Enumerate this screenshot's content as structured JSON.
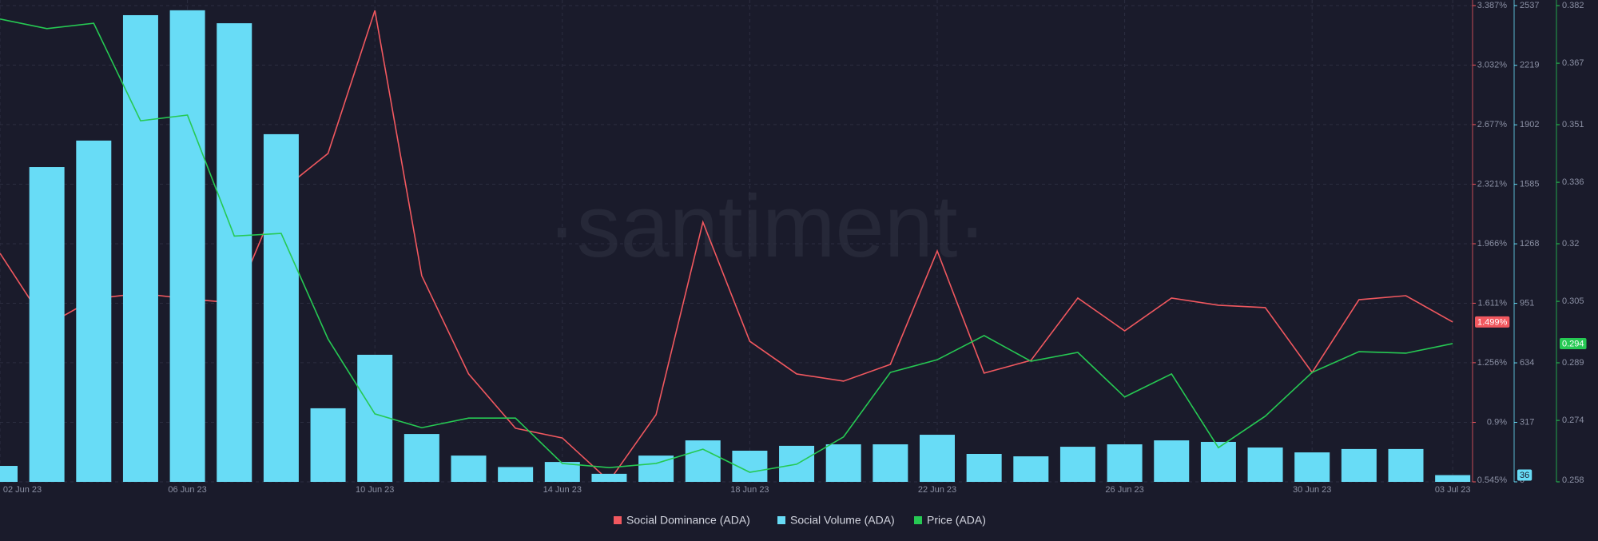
{
  "chart_data": {
    "type": "combo",
    "watermark": "·santiment·",
    "categories": [
      "02 Jun 23",
      null,
      null,
      null,
      "06 Jun 23",
      null,
      null,
      null,
      "10 Jun 23",
      null,
      null,
      null,
      "14 Jun 23",
      null,
      null,
      null,
      "18 Jun 23",
      null,
      null,
      null,
      "22 Jun 23",
      null,
      null,
      null,
      "26 Jun 23",
      null,
      null,
      null,
      "30 Jun 23",
      null,
      null,
      "03 Jul 23"
    ],
    "ylim": [
      0.545,
      3.387
    ],
    "yticks": [
      {
        "value": 0.545,
        "label": "0.545%"
      },
      {
        "value": 0.9,
        "label": "0.9%"
      },
      {
        "value": 1.256,
        "label": "1.256%"
      },
      {
        "value": 1.611,
        "label": "1.611%"
      },
      {
        "value": 1.966,
        "label": "1.966%"
      },
      {
        "value": 2.321,
        "label": "2.321%"
      },
      {
        "value": 2.677,
        "label": "2.677%"
      },
      {
        "value": 3.032,
        "label": "3.032%"
      },
      {
        "value": 3.387,
        "label": "3.387%"
      }
    ],
    "y2lim": [
      0,
      2537
    ],
    "y2ticks": [
      0,
      317,
      634,
      951,
      1268,
      1585,
      1902,
      2219,
      2537
    ],
    "y3lim": [
      0.258,
      0.382
    ],
    "y3ticks": [
      0.258,
      0.274,
      0.289,
      0.305,
      0.32,
      0.336,
      0.351,
      0.367,
      0.382
    ],
    "grid": true,
    "legend": "bottom",
    "series": [
      {
        "name": "Social Dominance (ADA)",
        "type": "line",
        "axis": "y",
        "color": "#f1585f",
        "values": [
          1.909,
          1.48,
          1.637,
          1.67,
          1.637,
          1.613,
          2.281,
          2.505,
          3.358,
          1.775,
          1.189,
          0.865,
          0.807,
          0.55,
          0.946,
          2.095,
          1.384,
          1.189,
          1.146,
          1.246,
          1.923,
          1.194,
          1.27,
          1.642,
          1.446,
          1.642,
          1.599,
          1.585,
          1.198,
          1.632,
          1.656,
          1.499
        ],
        "value_labels": [
          null,
          null,
          null,
          null,
          null,
          null,
          null,
          null,
          null,
          null,
          null,
          null,
          null,
          null,
          null,
          null,
          null,
          null,
          null,
          null,
          null,
          null,
          null,
          null,
          null,
          null,
          null,
          null,
          null,
          null,
          null,
          "1.499%"
        ]
      },
      {
        "name": "Social Volume (ADA)",
        "type": "bar",
        "axis": "y2",
        "color": "#68dcf6",
        "values": [
          85,
          1677,
          1818,
          2486,
          2512,
          2443,
          1852,
          392,
          677,
          255,
          140,
          79,
          106,
          43,
          140,
          221,
          166,
          192,
          200,
          200,
          251,
          149,
          136,
          187,
          200,
          221,
          213,
          183,
          157,
          175,
          175,
          36
        ]
      },
      {
        "name": "Price (ADA)",
        "type": "line",
        "axis": "y3",
        "color": "#26c953",
        "values": [
          0.3785,
          0.376,
          0.3774,
          0.352,
          0.3535,
          0.322,
          0.3227,
          0.2952,
          0.2757,
          0.2721,
          0.2746,
          0.2746,
          0.2628,
          0.2617,
          0.2628,
          0.2665,
          0.2605,
          0.2626,
          0.2697,
          0.2865,
          0.2898,
          0.2961,
          0.2894,
          0.2917,
          0.2801,
          0.2861,
          0.2669,
          0.2751,
          0.2865,
          0.2919,
          0.2915,
          0.294
        ]
      }
    ]
  }
}
